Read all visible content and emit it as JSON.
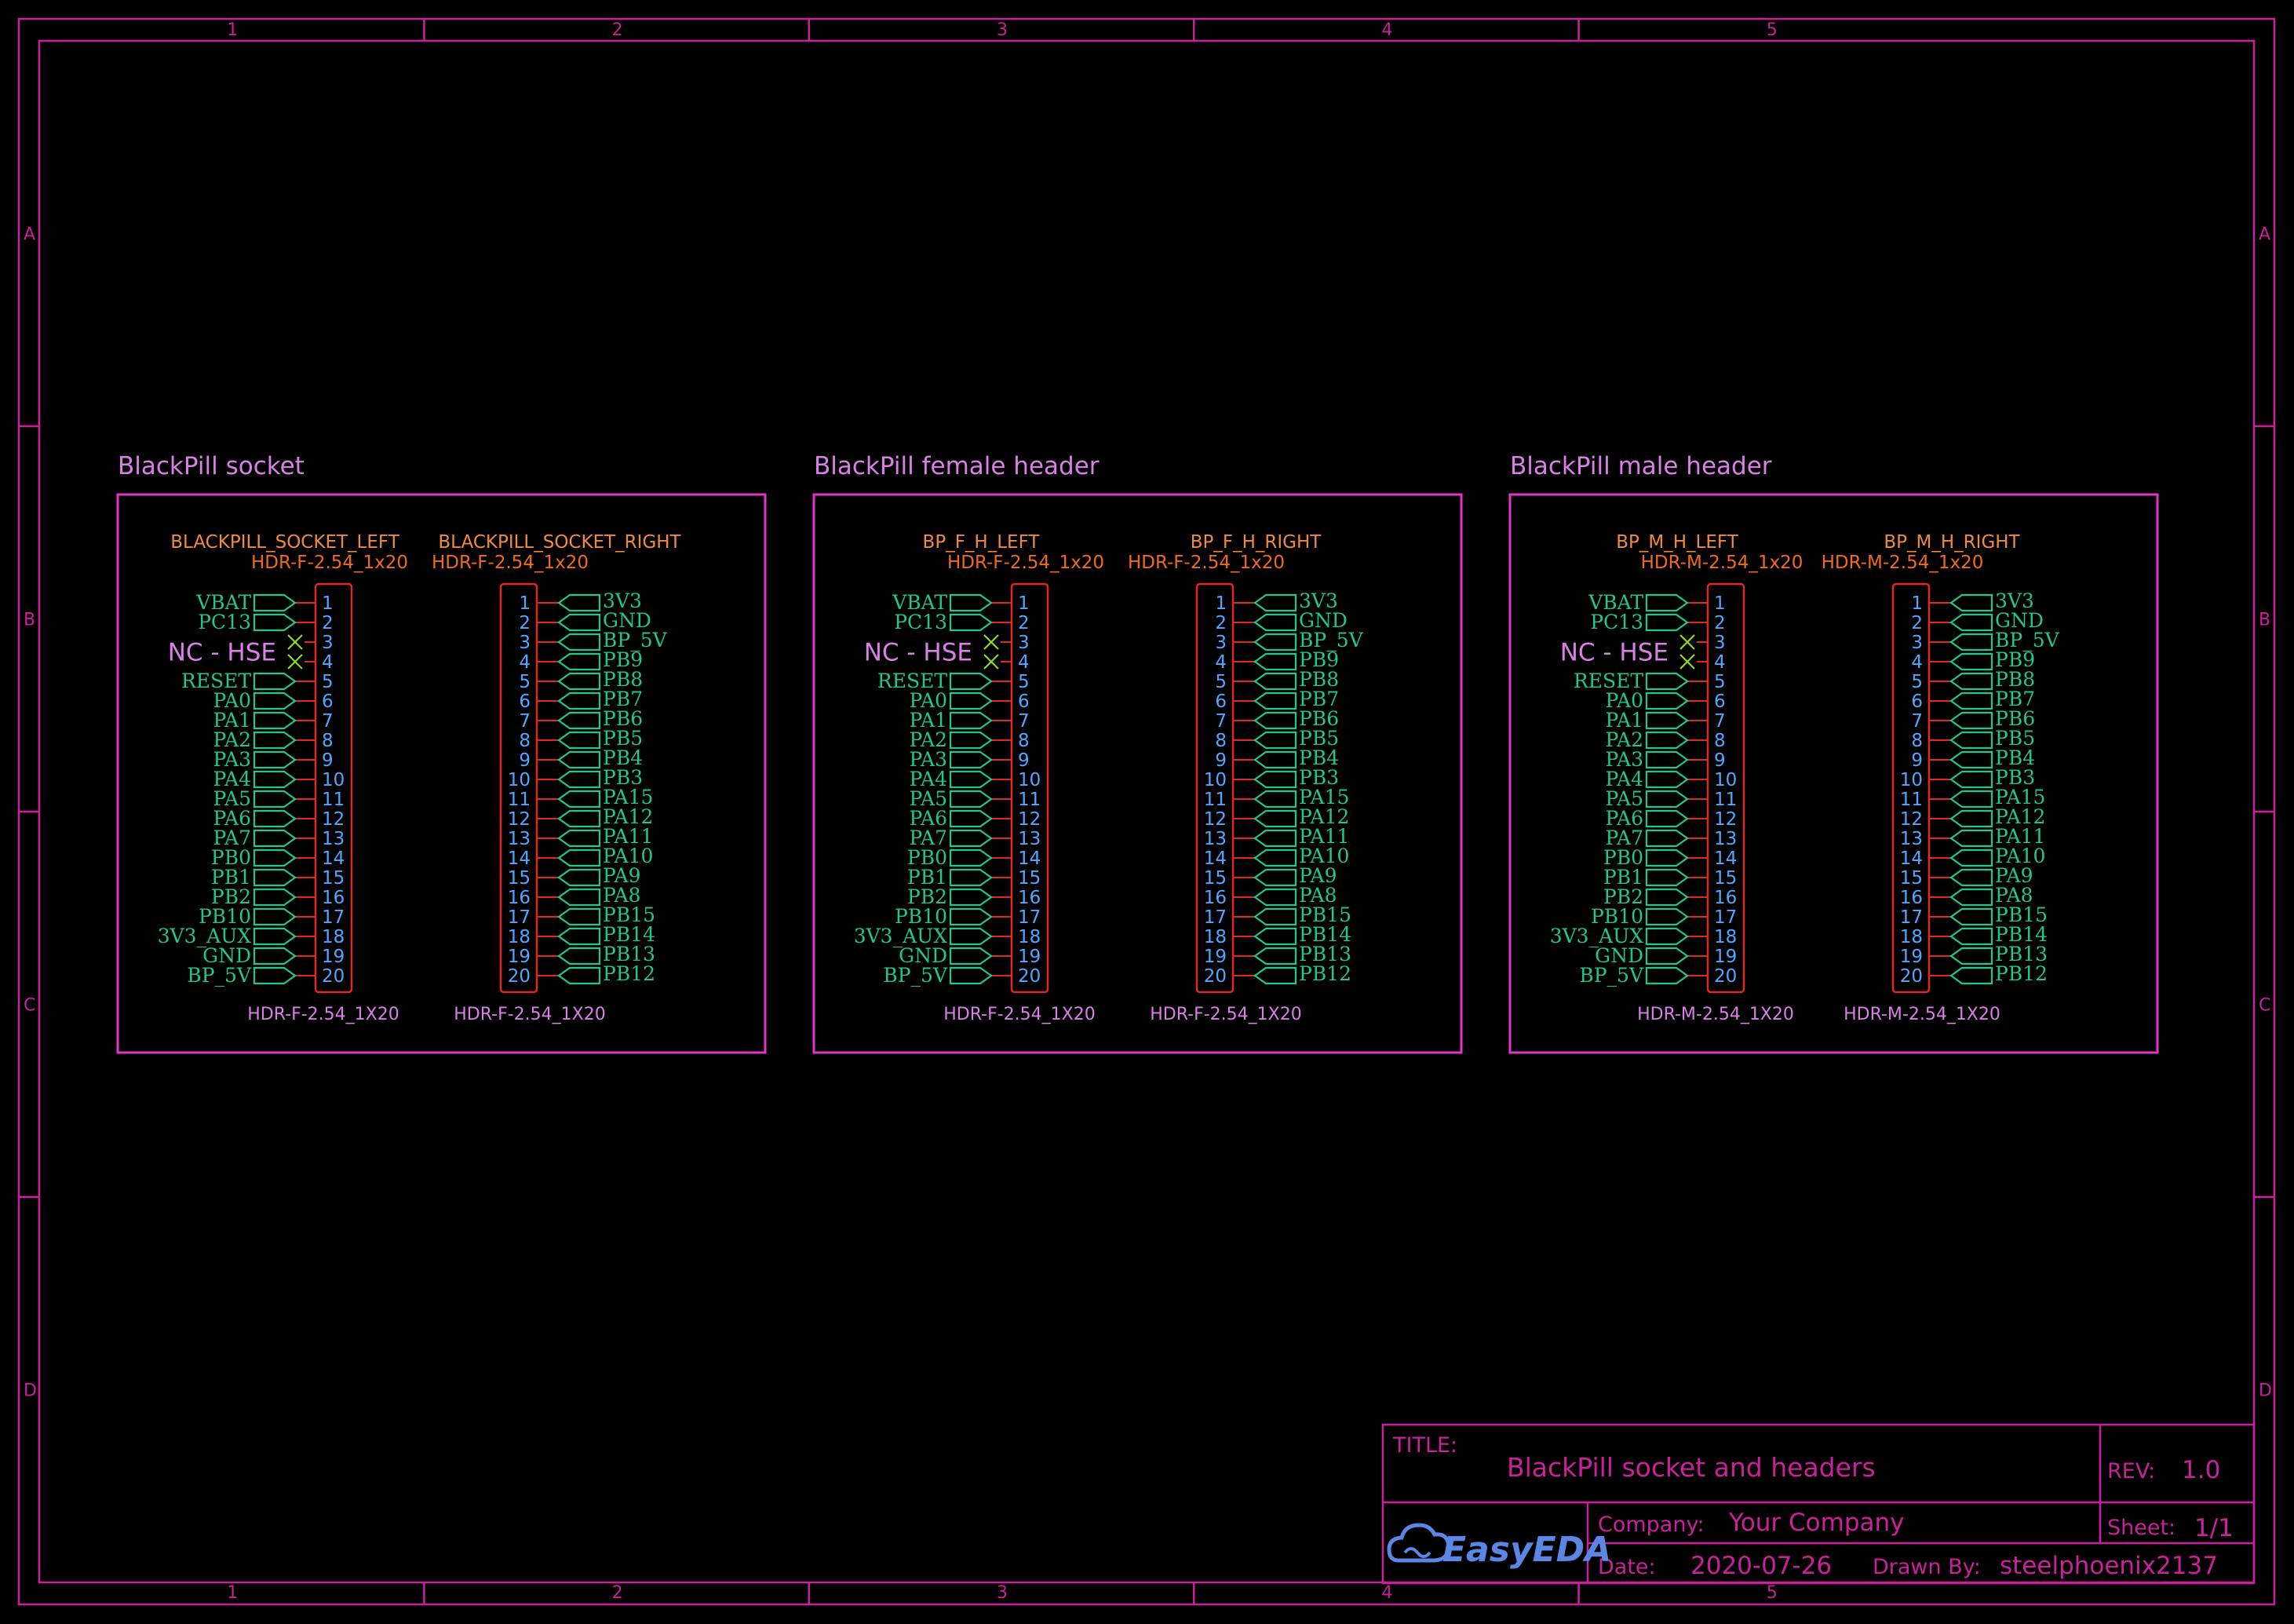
{
  "colors": {
    "background": "#000000",
    "frame": "#cc1f9b",
    "group_box": "#e335c8",
    "net_label": "#1fc88a",
    "pin_number": "#4fa7ff",
    "part_body": "#e0281e",
    "part_name": "#f08a3e",
    "no_connect": "#8fdc1c",
    "logo": "#5b86e5"
  },
  "border": {
    "columns": [
      "1",
      "2",
      "3",
      "4",
      "5"
    ],
    "rows": [
      "A",
      "B",
      "C",
      "D"
    ]
  },
  "groups": [
    {
      "title": "BlackPill socket",
      "left": {
        "name": "BLACKPILL_SOCKET_LEFT",
        "package": "HDR-F-2.54_1x20",
        "footprint": "HDR-F-2.54_1X20"
      },
      "right": {
        "name": "BLACKPILL_SOCKET_RIGHT",
        "package": "HDR-F-2.54_1x20",
        "footprint": "HDR-F-2.54_1X20"
      }
    },
    {
      "title": "BlackPill female header",
      "left": {
        "name": "BP_F_H_LEFT",
        "package": "HDR-F-2.54_1x20",
        "footprint": "HDR-F-2.54_1X20"
      },
      "right": {
        "name": "BP_F_H_RIGHT",
        "package": "HDR-F-2.54_1x20",
        "footprint": "HDR-F-2.54_1X20"
      }
    },
    {
      "title": "BlackPill male header",
      "left": {
        "name": "BP_M_H_LEFT",
        "package": "HDR-M-2.54_1x20",
        "footprint": "HDR-M-2.54_1X20"
      },
      "right": {
        "name": "BP_M_H_RIGHT",
        "package": "HDR-M-2.54_1x20",
        "footprint": "HDR-M-2.54_1X20"
      }
    }
  ],
  "pin_numbers": [
    "1",
    "2",
    "3",
    "4",
    "5",
    "6",
    "7",
    "8",
    "9",
    "10",
    "11",
    "12",
    "13",
    "14",
    "15",
    "16",
    "17",
    "18",
    "19",
    "20"
  ],
  "left_nets": [
    "VBAT",
    "PC13",
    "",
    "",
    "RESET",
    "PA0",
    "PA1",
    "PA2",
    "PA3",
    "PA4",
    "PA5",
    "PA6",
    "PA7",
    "PB0",
    "PB1",
    "PB2",
    "PB10",
    "3V3_AUX",
    "GND",
    "BP_5V"
  ],
  "right_nets": [
    "3V3",
    "GND",
    "BP_5V",
    "PB9",
    "PB8",
    "PB7",
    "PB6",
    "PB5",
    "PB4",
    "PB3",
    "PA15",
    "PA12",
    "PA11",
    "PA10",
    "PA9",
    "PA8",
    "PB15",
    "PB14",
    "PB13",
    "PB12"
  ],
  "nc_label": "NC - HSE",
  "title_block": {
    "title_label": "TITLE:",
    "title": "BlackPill socket and headers",
    "rev_label": "REV:",
    "rev": "1.0",
    "company_label": "Company:",
    "company": "Your Company",
    "sheet_label": "Sheet:",
    "sheet": "1/1",
    "date_label": "Date:",
    "date": "2020-07-26",
    "drawn_by_label": "Drawn By:",
    "drawn_by": "steelphoenix2137",
    "logo": "EasyEDA"
  }
}
